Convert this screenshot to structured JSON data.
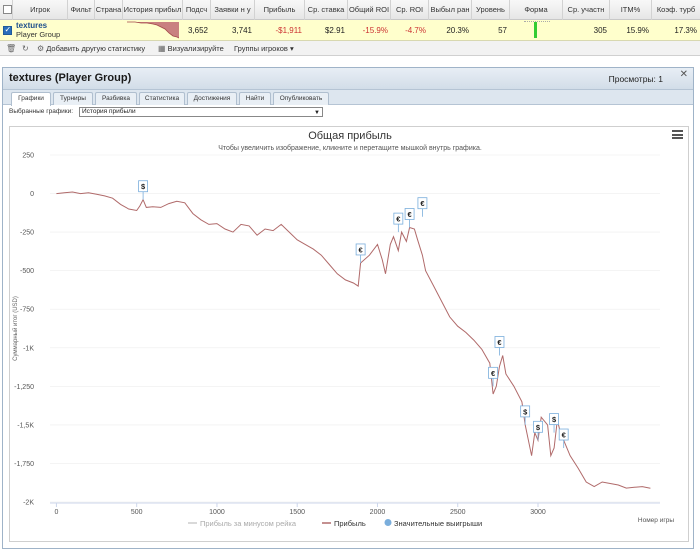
{
  "table": {
    "headers": [
      "Игрок",
      "Фильт",
      "Страна",
      "История прибыл",
      "Подсч",
      "Заявки н у",
      "Прибыль",
      "Ср. ставка",
      "Общий ROI",
      "Ср. ROI",
      "Выбыл ран",
      "Уровень",
      "Форма",
      "Ср. участн",
      "ITM%",
      "Коэф. турб"
    ],
    "row": {
      "player": "textures",
      "group": "Player Group",
      "count": "3,652",
      "entries": "3,741",
      "profit": "-$1,911",
      "avg_stake": "$2.91",
      "total_roi": "-15.9%",
      "avg_roi": "-4.7%",
      "early_out": "20.3%",
      "level": "57",
      "avg_field": "305",
      "itm": "15.9%",
      "turbo": "17.3%"
    },
    "colors": {
      "profit_negative": "#cc3333",
      "roi_negative": "#cc3333",
      "form": "#33cc33"
    }
  },
  "toolbar": {
    "add_stats": "Добавить другую статистику",
    "visualize": "Визуализируйте",
    "player_groups": "Группы игроков"
  },
  "panel": {
    "title": "textures (Player Group)",
    "views": "Просмотры: 1",
    "tabs": [
      "Графики",
      "Турниры",
      "Разбивка",
      "Статистика",
      "Достижения",
      "Найти",
      "Опубликовать"
    ],
    "active_tab": 0,
    "selector_label": "Выбранные графики:",
    "selector_value": "История прибыли"
  },
  "chart_data": {
    "type": "line",
    "title": "Общая прибыль",
    "subtitle": "Чтобы увеличить изображение, кликните и перетащите мышкой внутрь графика.",
    "xlabel": "Номер игры",
    "ylabel": "Суммарный итог (USD)",
    "xlim": [
      -40,
      3760
    ],
    "ylim": [
      -2000,
      250
    ],
    "xticks": [
      0,
      500,
      1000,
      1500,
      2000,
      2500,
      3000
    ],
    "xtick_labels": [
      "0",
      "500",
      "1000",
      "1500",
      "2000",
      "2500",
      "3000"
    ],
    "yticks": [
      250,
      0,
      -250,
      -500,
      -750,
      -1000,
      -1250,
      -1500,
      -1750,
      -2000
    ],
    "ytick_labels": [
      "250",
      "0",
      "-250",
      "-500",
      "-750",
      "-1K",
      "-1,250",
      "-1,5K",
      "-1,750",
      "-2K"
    ],
    "series": [
      {
        "name": "Прибыль за минусом рейка",
        "color": "#cccccc",
        "visible": false
      },
      {
        "name": "Прибыль",
        "color": "#b06a6a",
        "x": [
          0,
          50,
          100,
          150,
          200,
          250,
          300,
          350,
          400,
          450,
          500,
          520,
          540,
          560,
          600,
          650,
          700,
          750,
          800,
          850,
          900,
          950,
          1000,
          1050,
          1100,
          1150,
          1200,
          1250,
          1300,
          1350,
          1400,
          1450,
          1500,
          1550,
          1600,
          1650,
          1700,
          1750,
          1800,
          1850,
          1880,
          1895,
          1950,
          2000,
          2030,
          2050,
          2080,
          2100,
          2130,
          2150,
          2180,
          2200,
          2230,
          2250,
          2280,
          2300,
          2350,
          2400,
          2450,
          2500,
          2550,
          2600,
          2650,
          2700,
          2720,
          2740,
          2760,
          2780,
          2800,
          2850,
          2900,
          2920,
          2940,
          2960,
          2980,
          3000,
          3020,
          3060,
          3080,
          3100,
          3120,
          3140,
          3160,
          3200,
          3250,
          3300,
          3350,
          3400,
          3450,
          3500,
          3550,
          3600,
          3650,
          3700
        ],
        "y": [
          0,
          5,
          10,
          0,
          5,
          -5,
          -15,
          -30,
          -70,
          -100,
          -110,
          -80,
          -40,
          -90,
          -85,
          -90,
          -65,
          -50,
          -60,
          -130,
          -170,
          -200,
          -195,
          -230,
          -250,
          -200,
          -210,
          -270,
          -230,
          -240,
          -200,
          -250,
          -300,
          -330,
          -360,
          -400,
          -460,
          -520,
          -560,
          -580,
          -600,
          -450,
          -400,
          -330,
          -430,
          -520,
          -330,
          -280,
          -370,
          -250,
          -310,
          -220,
          -230,
          -300,
          -400,
          -500,
          -600,
          -700,
          -800,
          -860,
          -900,
          -950,
          -1010,
          -1100,
          -1300,
          -1250,
          -1120,
          -1050,
          -1170,
          -1250,
          -1350,
          -1500,
          -1600,
          -1700,
          -1550,
          -1600,
          -1450,
          -1500,
          -1700,
          -1650,
          -1470,
          -1550,
          -1600,
          -1700,
          -1780,
          -1870,
          -1900,
          -1870,
          -1880,
          -1890,
          -1910,
          -1905,
          -1900,
          -1911
        ]
      }
    ],
    "markers_series": {
      "name": "Значительные выигрыши",
      "color": "#7aaedc",
      "points": [
        {
          "x": 540,
          "y": -40,
          "label": "$"
        },
        {
          "x": 1895,
          "y": -450,
          "label": "€"
        },
        {
          "x": 2130,
          "y": -250,
          "label": "€"
        },
        {
          "x": 2200,
          "y": -220,
          "label": "€"
        },
        {
          "x": 2280,
          "y": -150,
          "label": "€"
        },
        {
          "x": 2720,
          "y": -1250,
          "label": "€"
        },
        {
          "x": 2760,
          "y": -1050,
          "label": "€"
        },
        {
          "x": 2920,
          "y": -1500,
          "label": "$"
        },
        {
          "x": 3000,
          "y": -1600,
          "label": "$"
        },
        {
          "x": 3100,
          "y": -1550,
          "label": "$"
        },
        {
          "x": 3160,
          "y": -1650,
          "label": "€"
        }
      ]
    },
    "legend_position": "bottom"
  }
}
